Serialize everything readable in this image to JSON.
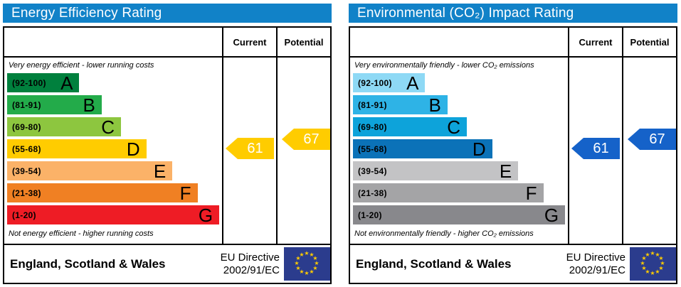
{
  "colors": {
    "header_bar": "#1182c8",
    "eu_flag_bg": "#2b3c8d",
    "eu_star": "#ffcc00",
    "energy": {
      "a": "#00803d",
      "b": "#23ab4a",
      "c": "#8dc63f",
      "d": "#ffcc00",
      "e": "#fbb268",
      "f": "#f08023",
      "g": "#ee1c25",
      "arrow": "#ffcc00"
    },
    "environment": {
      "a": "#8ed9f5",
      "b": "#2eb3e6",
      "c": "#0da3da",
      "d": "#0b72b8",
      "e": "#c3c3c5",
      "f": "#a4a4a6",
      "g": "#88888c",
      "arrow": "#1562c9"
    }
  },
  "icons": {
    "star": "★"
  },
  "panels": [
    {
      "title": "Energy Efficiency Rating",
      "columns": {
        "current": "Current",
        "potential": "Potential"
      },
      "top_caption": "Very energy efficient - lower running costs",
      "bottom_caption": "Not energy efficient - higher running costs",
      "bands": [
        {
          "range": "(92-100)",
          "letter": "A",
          "color": "#00803d"
        },
        {
          "range": "(81-91)",
          "letter": "B",
          "color": "#23ab4a"
        },
        {
          "range": "(69-80)",
          "letter": "C",
          "color": "#8dc63f"
        },
        {
          "range": "(55-68)",
          "letter": "D",
          "color": "#ffcc00"
        },
        {
          "range": "(39-54)",
          "letter": "E",
          "color": "#fbb268"
        },
        {
          "range": "(21-38)",
          "letter": "F",
          "color": "#f08023"
        },
        {
          "range": "(1-20)",
          "letter": "G",
          "color": "#ee1c25"
        }
      ],
      "ratings": {
        "current": {
          "value": "61",
          "color": "#ffcc00"
        },
        "potential": {
          "value": "67",
          "color": "#ffcc00"
        }
      },
      "footer": {
        "region": "England, Scotland & Wales",
        "directive_line1": "EU Directive",
        "directive_line2": "2002/91/EC"
      }
    },
    {
      "title": "Environmental (CO₂) Impact Rating",
      "columns": {
        "current": "Current",
        "potential": "Potential"
      },
      "top_caption": "Very environmentally friendly - lower CO₂ emissions",
      "bottom_caption": "Not environmentally friendly - higher CO₂ emissions",
      "bands": [
        {
          "range": "(92-100)",
          "letter": "A",
          "color": "#8ed9f5"
        },
        {
          "range": "(81-91)",
          "letter": "B",
          "color": "#2eb3e6"
        },
        {
          "range": "(69-80)",
          "letter": "C",
          "color": "#0da3da"
        },
        {
          "range": "(55-68)",
          "letter": "D",
          "color": "#0b72b8"
        },
        {
          "range": "(39-54)",
          "letter": "E",
          "color": "#c3c3c5"
        },
        {
          "range": "(21-38)",
          "letter": "F",
          "color": "#a4a4a6"
        },
        {
          "range": "(1-20)",
          "letter": "G",
          "color": "#88888c"
        }
      ],
      "ratings": {
        "current": {
          "value": "61",
          "color": "#1562c9"
        },
        "potential": {
          "value": "67",
          "color": "#1562c9"
        }
      },
      "footer": {
        "region": "England, Scotland & Wales",
        "directive_line1": "EU Directive",
        "directive_line2": "2002/91/EC"
      }
    }
  ],
  "chart_data": [
    {
      "type": "bar",
      "title": "Energy Efficiency Rating",
      "bands": [
        {
          "letter": "A",
          "range": [
            92,
            100
          ]
        },
        {
          "letter": "B",
          "range": [
            81,
            91
          ]
        },
        {
          "letter": "C",
          "range": [
            69,
            80
          ]
        },
        {
          "letter": "D",
          "range": [
            55,
            68
          ]
        },
        {
          "letter": "E",
          "range": [
            39,
            54
          ]
        },
        {
          "letter": "F",
          "range": [
            21,
            38
          ]
        },
        {
          "letter": "G",
          "range": [
            1,
            20
          ]
        }
      ],
      "current": 61,
      "potential": 67,
      "current_band": "D",
      "potential_band": "D",
      "top_caption": "Very energy efficient - lower running costs",
      "bottom_caption": "Not energy efficient - higher running costs",
      "region": "England, Scotland & Wales",
      "directive": "EU Directive 2002/91/EC"
    },
    {
      "type": "bar",
      "title": "Environmental (CO₂) Impact Rating",
      "bands": [
        {
          "letter": "A",
          "range": [
            92,
            100
          ]
        },
        {
          "letter": "B",
          "range": [
            81,
            91
          ]
        },
        {
          "letter": "C",
          "range": [
            69,
            80
          ]
        },
        {
          "letter": "D",
          "range": [
            55,
            68
          ]
        },
        {
          "letter": "E",
          "range": [
            39,
            54
          ]
        },
        {
          "letter": "F",
          "range": [
            21,
            38
          ]
        },
        {
          "letter": "G",
          "range": [
            1,
            20
          ]
        }
      ],
      "current": 61,
      "potential": 67,
      "current_band": "D",
      "potential_band": "D",
      "top_caption": "Very environmentally friendly - lower CO₂ emissions",
      "bottom_caption": "Not environmentally friendly - higher CO₂ emissions",
      "region": "England, Scotland & Wales",
      "directive": "EU Directive 2002/91/EC"
    }
  ]
}
